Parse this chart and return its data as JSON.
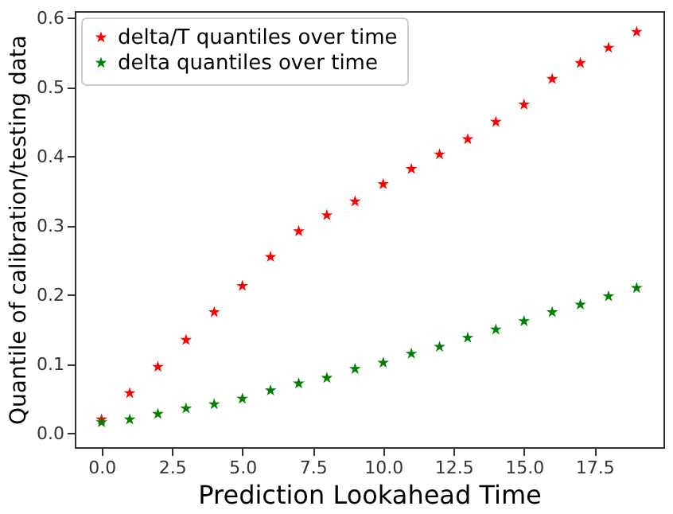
{
  "chart_data": {
    "type": "scatter",
    "xlabel": "Prediction Lookahead Time",
    "ylabel": "Quantile of calibration/testing data",
    "x": [
      0,
      1,
      2,
      3,
      4,
      5,
      6,
      7,
      8,
      9,
      10,
      11,
      12,
      13,
      14,
      15,
      16,
      17,
      18,
      19
    ],
    "series": [
      {
        "name": "delta/T quantiles over time",
        "color": "#ff0000",
        "values": [
          0.02,
          0.058,
          0.096,
          0.135,
          0.175,
          0.213,
          0.255,
          0.292,
          0.315,
          0.335,
          0.36,
          0.382,
          0.403,
          0.425,
          0.45,
          0.475,
          0.512,
          0.535,
          0.557,
          0.58
        ]
      },
      {
        "name": "delta quantiles over time",
        "color": "#008000",
        "values": [
          0.016,
          0.02,
          0.028,
          0.036,
          0.042,
          0.05,
          0.062,
          0.072,
          0.08,
          0.093,
          0.102,
          0.115,
          0.125,
          0.138,
          0.15,
          0.162,
          0.175,
          0.186,
          0.198,
          0.21
        ]
      }
    ],
    "xlim": [
      -0.95,
      19.95
    ],
    "ylim": [
      -0.02,
      0.61
    ],
    "xticks": [
      {
        "value": 0,
        "label": "0.0"
      },
      {
        "value": 2.5,
        "label": "2.5"
      },
      {
        "value": 5,
        "label": "5.0"
      },
      {
        "value": 7.5,
        "label": "7.5"
      },
      {
        "value": 10,
        "label": "10.0"
      },
      {
        "value": 12.5,
        "label": "12.5"
      },
      {
        "value": 15,
        "label": "15.0"
      },
      {
        "value": 17.5,
        "label": "17.5"
      }
    ],
    "yticks": [
      {
        "value": 0,
        "label": "0.0"
      },
      {
        "value": 0.1,
        "label": "0.1"
      },
      {
        "value": 0.2,
        "label": "0.2"
      },
      {
        "value": 0.3,
        "label": "0.3"
      },
      {
        "value": 0.4,
        "label": "0.4"
      },
      {
        "value": 0.5,
        "label": "0.5"
      },
      {
        "value": 0.6,
        "label": "0.6"
      }
    ],
    "marker": "star",
    "legend": "top left",
    "grid": false
  }
}
